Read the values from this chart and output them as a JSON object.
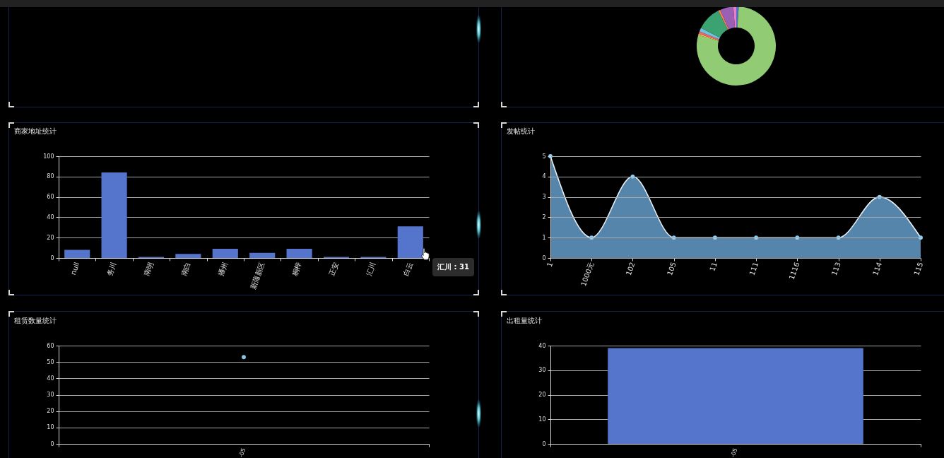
{
  "chart_data": [
    {
      "type": "donut",
      "categories": [
        null,
        null,
        null,
        null,
        null,
        null,
        null,
        null,
        null
      ],
      "values": [
        1,
        78.5,
        0.5,
        1,
        1.5,
        10,
        0.8,
        5.5,
        1.2
      ],
      "colors": [
        "#5470c6",
        "#91cc75",
        "#fac858",
        "#ee6666",
        "#73c0de",
        "#3ba272",
        "#fc8452",
        "#9a60b4",
        "#ea7ccc"
      ]
    },
    {
      "type": "bar",
      "title": "商家地址统计",
      "categories": [
        "null",
        "务川",
        "南明",
        "南白",
        "播州",
        "新蒲新区",
        "桐梓",
        "正安",
        "汇川",
        "白云"
      ],
      "values": [
        8,
        84,
        1,
        4,
        9,
        5,
        9,
        1,
        1,
        31
      ],
      "color": "#5574cc",
      "ylim": [
        0,
        100
      ],
      "yticks": [
        0,
        20,
        40,
        60,
        80,
        100
      ],
      "grid": "y",
      "annotations": [
        "汇川 : 31"
      ]
    },
    {
      "type": "area",
      "title": "发帖统计",
      "categories": [
        "1",
        "1000元",
        "102",
        "105",
        "11",
        "111",
        "1116",
        "113",
        "114",
        "115"
      ],
      "values": [
        5,
        1,
        4,
        1,
        1,
        1,
        1,
        1,
        3,
        1
      ],
      "color": "#5585aa",
      "ylim": [
        0,
        5
      ],
      "yticks": [
        0,
        1,
        2,
        3,
        4,
        5
      ],
      "grid": "y",
      "marker": "circle"
    },
    {
      "type": "scatter",
      "title": "租赁数量统计",
      "categories": [
        "-05"
      ],
      "values": [
        53
      ],
      "color": "#8fc3e6",
      "ylim": [
        0,
        60
      ],
      "yticks": [
        0,
        10,
        20,
        30,
        40,
        50,
        60
      ],
      "grid": "y",
      "marker": "circle"
    },
    {
      "type": "bar",
      "title": "出租量统计",
      "categories": [
        "-05"
      ],
      "values": [
        39
      ],
      "color": "#5574cc",
      "ylim": [
        0,
        40
      ],
      "yticks": [
        0,
        10,
        20,
        30,
        40
      ],
      "grid": "y"
    }
  ]
}
